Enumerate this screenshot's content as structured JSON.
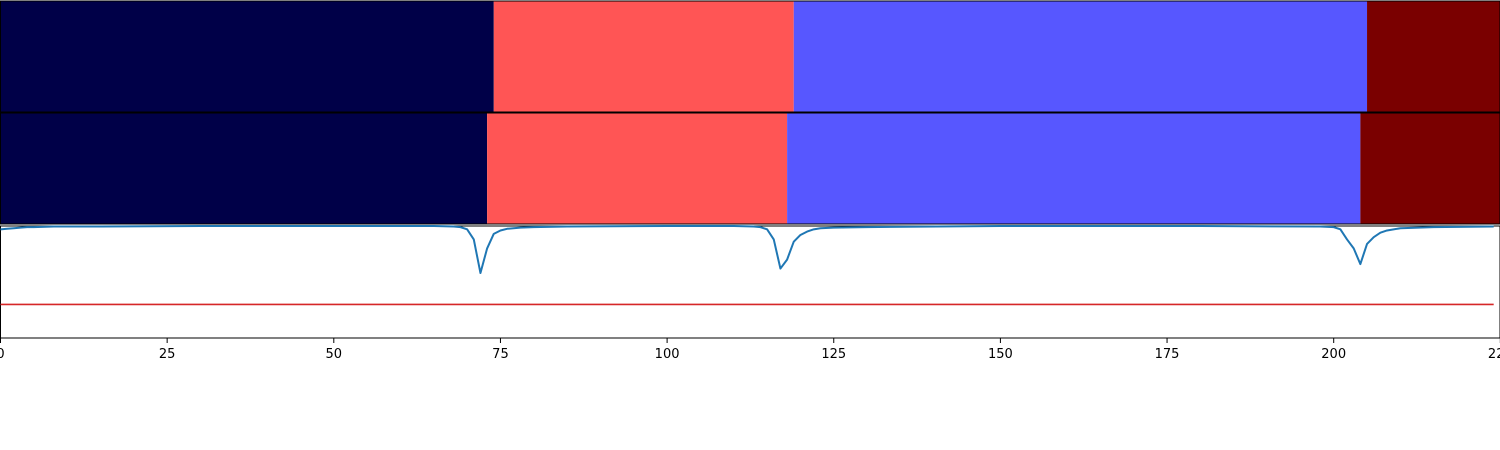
{
  "chart_data": {
    "type": "segmentation-timeline",
    "x_axis": {
      "xlim": [
        0,
        225
      ],
      "ticks": [
        0,
        25,
        50,
        75,
        100,
        125,
        150,
        175,
        200,
        225
      ],
      "tick_labels": [
        "0",
        "25",
        "50",
        "75",
        "100",
        "125",
        "150",
        "175",
        "200",
        "225"
      ]
    },
    "segment_rows": [
      {
        "segments": [
          {
            "start": 0,
            "end": 74,
            "color": "#000048"
          },
          {
            "start": 74,
            "end": 119,
            "color": "#ff5555"
          },
          {
            "start": 119,
            "end": 205,
            "color": "#5757ff"
          },
          {
            "start": 205,
            "end": 225,
            "color": "#7a0000"
          }
        ]
      },
      {
        "segments": [
          {
            "start": 0,
            "end": 73,
            "color": "#000048"
          },
          {
            "start": 73,
            "end": 118,
            "color": "#ff5555"
          },
          {
            "start": 118,
            "end": 204,
            "color": "#5757ff"
          },
          {
            "start": 204,
            "end": 225,
            "color": "#7a0000"
          }
        ]
      }
    ],
    "signal_plot": {
      "ylim": [
        0,
        1
      ],
      "threshold": 0.3,
      "threshold_color": "#d62728",
      "line_color": "#1f77b4",
      "x": [
        0,
        1,
        2,
        3,
        4,
        5,
        8,
        15,
        30,
        50,
        65,
        68,
        69,
        70,
        71,
        72,
        73,
        74,
        75,
        76,
        78,
        80,
        85,
        100,
        110,
        113,
        114,
        115,
        116,
        117,
        118,
        119,
        120,
        121,
        122,
        123,
        125,
        130,
        150,
        180,
        198,
        200,
        201,
        202,
        203,
        204,
        205,
        206,
        207,
        208,
        210,
        215,
        224
      ],
      "y": [
        0.97,
        0.975,
        0.98,
        0.985,
        0.99,
        0.99,
        0.995,
        0.995,
        1.0,
        1.0,
        1.0,
        0.995,
        0.99,
        0.97,
        0.88,
        0.58,
        0.8,
        0.93,
        0.96,
        0.975,
        0.985,
        0.99,
        0.995,
        1.0,
        1.0,
        0.995,
        0.99,
        0.97,
        0.88,
        0.62,
        0.7,
        0.86,
        0.92,
        0.95,
        0.97,
        0.98,
        0.985,
        0.99,
        1.0,
        1.0,
        0.995,
        0.99,
        0.97,
        0.88,
        0.8,
        0.66,
        0.84,
        0.9,
        0.94,
        0.96,
        0.98,
        0.99,
        0.995
      ]
    }
  }
}
